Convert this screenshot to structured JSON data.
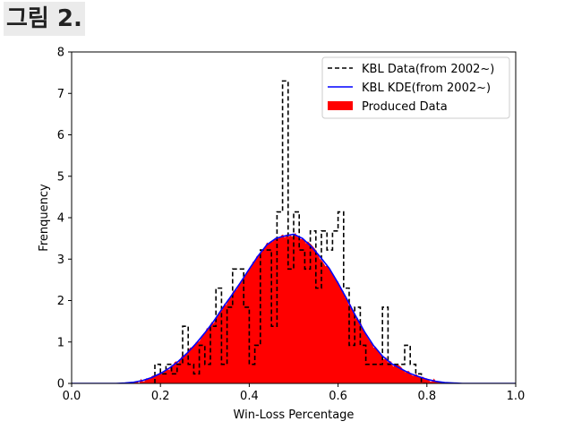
{
  "figure_label": "그림 2.",
  "chart_data": {
    "type": "histogram",
    "xlabel": "Win-Loss Percentage",
    "ylabel": "Frenquency",
    "xlim": [
      0.0,
      1.0
    ],
    "ylim": [
      0,
      8
    ],
    "x_ticks": [
      "0.0",
      "0.2",
      "0.4",
      "0.6",
      "0.8",
      "1.0"
    ],
    "y_ticks": [
      "0",
      "1",
      "2",
      "3",
      "4",
      "5",
      "6",
      "7",
      "8"
    ],
    "legend_position": "top-right",
    "colors": {
      "kbl_data": "#000000",
      "kbl_kde": "#0000ff",
      "produced": "#ff0000"
    },
    "series": [
      {
        "name": "KBL Data(from 2002~)",
        "style": "dashed-step",
        "bin_width": 0.0125,
        "bin_starts": [
          0.1875,
          0.2,
          0.2125,
          0.225,
          0.2375,
          0.25,
          0.2625,
          0.275,
          0.2875,
          0.3,
          0.3125,
          0.325,
          0.3375,
          0.35,
          0.3625,
          0.375,
          0.3875,
          0.4,
          0.4125,
          0.425,
          0.4375,
          0.45,
          0.4625,
          0.475,
          0.4875,
          0.5,
          0.5125,
          0.525,
          0.5375,
          0.55,
          0.5625,
          0.575,
          0.5875,
          0.6,
          0.6125,
          0.625,
          0.6375,
          0.65,
          0.6625,
          0.675,
          0.6875,
          0.7,
          0.7125,
          0.725,
          0.7375,
          0.75,
          0.7625,
          0.775,
          0.7875
        ],
        "values": [
          0.46,
          0.23,
          0.46,
          0.23,
          0.46,
          1.38,
          0.46,
          0.23,
          0.92,
          0.46,
          1.38,
          2.3,
          0.46,
          1.84,
          2.76,
          2.76,
          1.84,
          0.46,
          0.92,
          3.22,
          3.22,
          1.38,
          4.14,
          7.3,
          2.76,
          4.14,
          3.22,
          2.76,
          3.68,
          2.3,
          3.68,
          3.22,
          3.68,
          4.14,
          2.3,
          0.92,
          1.84,
          0.92,
          0.46,
          0.46,
          0.46,
          1.84,
          0.46,
          0.46,
          0.46,
          0.92,
          0.46,
          0.23,
          0
        ]
      },
      {
        "name": "KBL KDE(from 2002~)",
        "style": "line",
        "x": [
          0.0,
          0.1,
          0.12,
          0.14,
          0.16,
          0.18,
          0.2,
          0.22,
          0.24,
          0.26,
          0.28,
          0.3,
          0.32,
          0.34,
          0.36,
          0.38,
          0.4,
          0.42,
          0.44,
          0.46,
          0.48,
          0.5,
          0.52,
          0.54,
          0.56,
          0.58,
          0.6,
          0.62,
          0.64,
          0.66,
          0.68,
          0.7,
          0.72,
          0.74,
          0.76,
          0.78,
          0.8,
          0.82,
          0.84,
          0.86,
          0.88,
          0.9,
          1.0
        ],
        "y": [
          0,
          0,
          0.01,
          0.03,
          0.07,
          0.14,
          0.24,
          0.37,
          0.53,
          0.73,
          0.96,
          1.22,
          1.5,
          1.82,
          2.12,
          2.43,
          2.76,
          3.08,
          3.35,
          3.5,
          3.56,
          3.6,
          3.5,
          3.3,
          3.05,
          2.78,
          2.42,
          2.03,
          1.62,
          1.24,
          0.91,
          0.66,
          0.48,
          0.36,
          0.25,
          0.17,
          0.1,
          0.05,
          0.02,
          0.01,
          0,
          0,
          0
        ]
      },
      {
        "name": "Produced Data",
        "style": "filled-area"
      }
    ]
  }
}
